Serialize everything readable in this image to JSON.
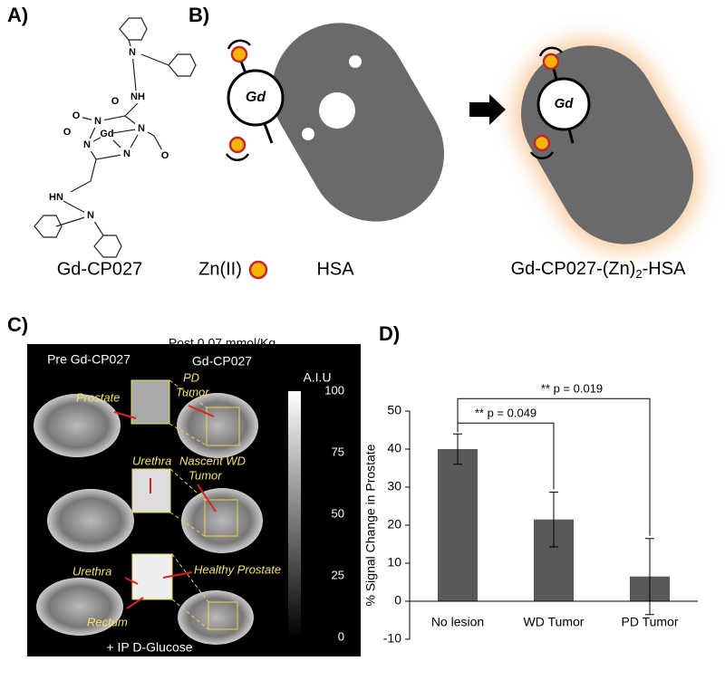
{
  "panels": {
    "A": {
      "label": "A)",
      "atoms": [
        "N",
        "NH",
        "O",
        "N",
        "N",
        "Gd",
        "O",
        "O",
        "N",
        "N",
        "O",
        "HN",
        "N"
      ],
      "caption": "Gd-CP027"
    },
    "B": {
      "label": "B)",
      "gd": "Gd",
      "zn": "Zn(II)",
      "hsa": "HSA",
      "complex": [
        "Gd-CP027-(Zn)",
        "2",
        "-HSA"
      ]
    },
    "C": {
      "label": "C)",
      "pre": "Pre Gd-CP027",
      "post": [
        "Post 0.07 mmol/Kg",
        "Gd-CP027"
      ],
      "notes": {
        "pd": [
          "PD",
          "Tumor"
        ],
        "prostate": "Prostate",
        "urethra1": "Urethra",
        "wd": [
          "Nascent WD",
          "Tumor"
        ],
        "urethra2": "Urethra",
        "healthy": "Healthy Prostate",
        "rectum": "Rectum"
      },
      "colorbar_unit": "A.I.U",
      "colorbar_ticks": [
        100,
        75,
        50,
        25,
        0
      ],
      "footer": "+ IP D-Glucose"
    }
  },
  "chart_data": {
    "type": "bar",
    "label": "D)",
    "y_label": "% Signal Change in Prostate",
    "categories": [
      "No lesion",
      "WD Tumor",
      "PD Tumor"
    ],
    "values": [
      40,
      21.5,
      6.5
    ],
    "errors": [
      4,
      7.2,
      10
    ],
    "color": "#595959",
    "ylim": [
      -10,
      50
    ],
    "yticks": [
      -10,
      0,
      10,
      20,
      30,
      40,
      50
    ],
    "annotations": [
      "** p = 0.049",
      "** p = 0.019"
    ]
  }
}
